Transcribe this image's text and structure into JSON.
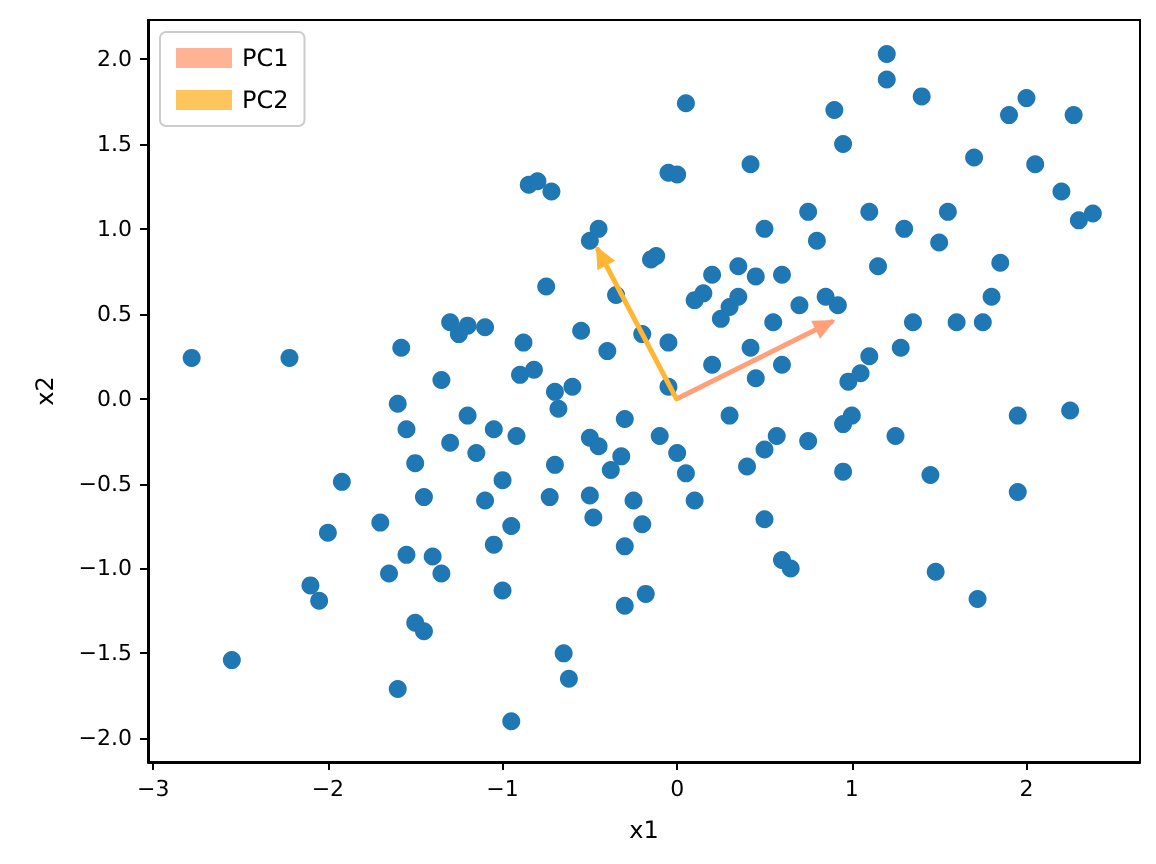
{
  "chart_data": {
    "type": "scatter",
    "xlabel": "x1",
    "ylabel": "x2",
    "xlim": [
      -3.03,
      2.65
    ],
    "ylim": [
      -2.14,
      2.23
    ],
    "xticks": [
      -3,
      -2,
      -1,
      0,
      1,
      2
    ],
    "yticks": [
      {
        "value": -2,
        "label": "−2.0"
      },
      {
        "value": -1.5,
        "label": "−1.5"
      },
      {
        "value": -1,
        "label": "−1.0"
      },
      {
        "value": -0.5,
        "label": "−0.5"
      },
      {
        "value": 0,
        "label": "0.0"
      },
      {
        "value": 0.5,
        "label": "0.5"
      },
      {
        "value": 1,
        "label": "1.0"
      },
      {
        "value": 1.5,
        "label": "1.5"
      },
      {
        "value": 2,
        "label": "2.0"
      }
    ],
    "grid": false,
    "legend": "top left",
    "series": [
      {
        "color": "#1f77b4",
        "marker": "circle",
        "x": [
          -2.78,
          -2.22,
          -2.55,
          -2.1,
          -2.05,
          -2.0,
          -1.92,
          -1.7,
          -1.65,
          -1.6,
          -1.55,
          -1.5,
          -1.45,
          -1.4,
          -1.35,
          -1.58,
          -1.6,
          -1.55,
          -1.45,
          -1.5,
          -1.35,
          -1.3,
          -1.25,
          -1.3,
          -1.2,
          -1.1,
          -1.2,
          -1.15,
          -1.1,
          -1.05,
          -1.0,
          -0.95,
          -1.05,
          -1.0,
          -0.95,
          -0.92,
          -0.9,
          -0.88,
          -0.82,
          -0.85,
          -0.8,
          -0.72,
          -0.75,
          -0.7,
          -0.7,
          -0.73,
          -0.68,
          -0.65,
          -0.62,
          -0.6,
          -0.55,
          -0.5,
          -0.45,
          -0.48,
          -0.5,
          -0.45,
          -0.4,
          -0.35,
          -0.3,
          -0.25,
          -0.2,
          -0.5,
          -0.38,
          -0.32,
          -0.3,
          -0.3,
          -0.18,
          -0.2,
          -0.15,
          -0.12,
          -0.05,
          0.0,
          0.05,
          -0.05,
          -0.05,
          0.0,
          0.05,
          0.1,
          0.15,
          0.2,
          0.25,
          0.3,
          0.3,
          0.35,
          0.35,
          0.42,
          0.42,
          0.45,
          0.4,
          0.5,
          0.55,
          0.6,
          0.5,
          0.57,
          0.6,
          0.65,
          0.75,
          0.8,
          0.85,
          0.9,
          0.95,
          0.95,
          0.98,
          1.0,
          1.05,
          1.1,
          1.15,
          1.2,
          1.25,
          1.28,
          1.35,
          1.4,
          1.45,
          1.48,
          1.55,
          1.7,
          1.72,
          1.75,
          1.8,
          1.85,
          1.9,
          1.95,
          1.95,
          2.0,
          2.05,
          2.2,
          2.25,
          2.27,
          2.3,
          2.38,
          1.2,
          0.5,
          0.45,
          0.1,
          0.2,
          -0.1,
          0.6,
          0.7,
          0.75,
          1.1,
          0.92,
          1.6,
          1.5,
          0.95,
          1.3
        ],
        "values": [
          0.24,
          0.24,
          -1.54,
          -1.1,
          -1.19,
          -0.79,
          -0.49,
          -0.73,
          -1.03,
          -1.71,
          -0.92,
          -1.32,
          -1.37,
          -0.93,
          -1.03,
          0.3,
          -0.03,
          -0.18,
          -0.58,
          -0.38,
          0.11,
          -0.26,
          0.38,
          0.45,
          0.43,
          0.42,
          -0.1,
          -0.32,
          -0.6,
          -0.86,
          -1.13,
          -1.9,
          -0.18,
          -0.48,
          -0.75,
          -0.22,
          0.14,
          0.33,
          0.17,
          1.26,
          1.28,
          1.22,
          0.66,
          0.04,
          -0.39,
          -0.58,
          -0.06,
          -1.5,
          -1.65,
          0.07,
          0.4,
          0.93,
          1.0,
          -0.7,
          -0.57,
          -0.28,
          0.28,
          0.61,
          -0.12,
          -0.6,
          -0.74,
          -0.23,
          -0.42,
          -0.34,
          -0.87,
          -1.22,
          -1.15,
          0.38,
          0.82,
          0.84,
          1.33,
          1.32,
          1.74,
          0.33,
          0.07,
          -0.32,
          -0.44,
          -0.6,
          0.62,
          0.73,
          0.47,
          -0.1,
          0.54,
          0.78,
          0.6,
          1.38,
          0.3,
          0.12,
          -0.4,
          -0.3,
          0.45,
          0.73,
          -0.71,
          -0.22,
          -0.95,
          -1.0,
          1.1,
          0.93,
          0.6,
          1.7,
          -0.15,
          -0.43,
          0.1,
          -0.1,
          0.15,
          1.1,
          0.78,
          2.03,
          -0.22,
          0.3,
          0.45,
          1.78,
          -0.45,
          -1.02,
          1.1,
          1.42,
          -1.18,
          0.45,
          0.6,
          0.8,
          1.67,
          -0.1,
          -0.55,
          1.77,
          1.38,
          1.22,
          -0.07,
          1.67,
          1.05,
          1.09,
          1.88,
          1.0,
          0.72,
          0.58,
          0.2,
          -0.22,
          0.2,
          0.55,
          -0.25,
          0.25,
          0.55,
          0.45,
          0.92,
          1.5,
          1.0
        ]
      },
      {
        "type": "line",
        "name": "PC1",
        "color": "#ffa07a",
        "x": [
          0,
          0.88
        ],
        "values": [
          0,
          0.45
        ]
      },
      {
        "type": "line",
        "name": "PC2",
        "color": "#ffb733",
        "x": [
          0,
          -0.45
        ],
        "values": [
          0,
          0.88
        ]
      }
    ]
  }
}
